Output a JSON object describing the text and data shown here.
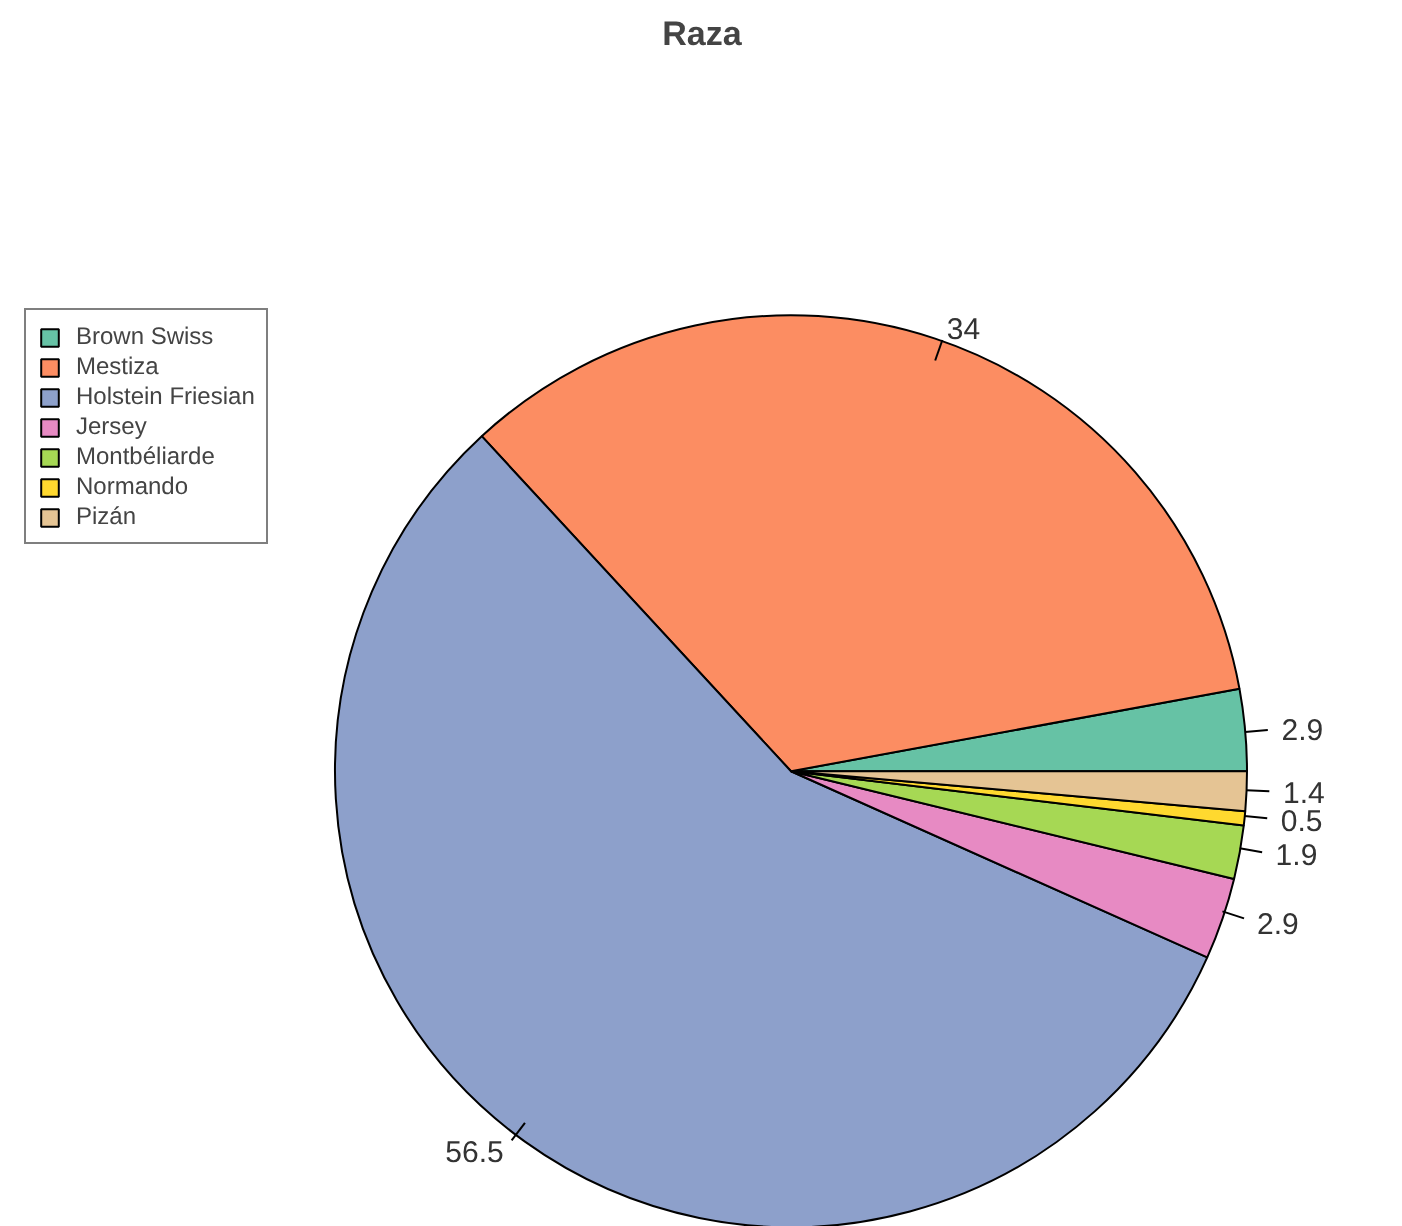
{
  "chart_data": {
    "type": "pie",
    "title": "Raza",
    "categories": [
      "Brown Swiss",
      "Mestiza",
      "Holstein Friesian",
      "Jersey",
      "Montbéliarde",
      "Normando",
      "Pizán"
    ],
    "values": [
      2.9,
      34,
      56.5,
      2.9,
      1.9,
      0.5,
      1.4
    ],
    "colors": [
      "#66c2a5",
      "#fc8d62",
      "#8da0cb",
      "#e78ac3",
      "#a6d854",
      "#ffd92f",
      "#e5c494"
    ],
    "data_labels": true,
    "legend": "top left"
  }
}
